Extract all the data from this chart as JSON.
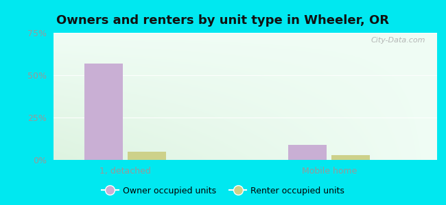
{
  "title": "Owners and renters by unit type in Wheeler, OR",
  "categories": [
    "1, detached",
    "Mobile home"
  ],
  "owner_values": [
    57.0,
    9.0
  ],
  "renter_values": [
    5.0,
    3.0
  ],
  "owner_color": "#c9afd4",
  "renter_color": "#cdd18a",
  "ylim": [
    0,
    75
  ],
  "yticks": [
    0,
    25,
    50,
    75
  ],
  "yticklabels": [
    "0%",
    "25%",
    "50%",
    "75%"
  ],
  "bar_width": 0.32,
  "outer_color": "#00e8f0",
  "title_fontsize": 13,
  "legend_label_owner": "Owner occupied units",
  "legend_label_renter": "Renter occupied units",
  "watermark": "City-Data.com",
  "tick_color": "#999999",
  "grid_color": "#dddddd"
}
